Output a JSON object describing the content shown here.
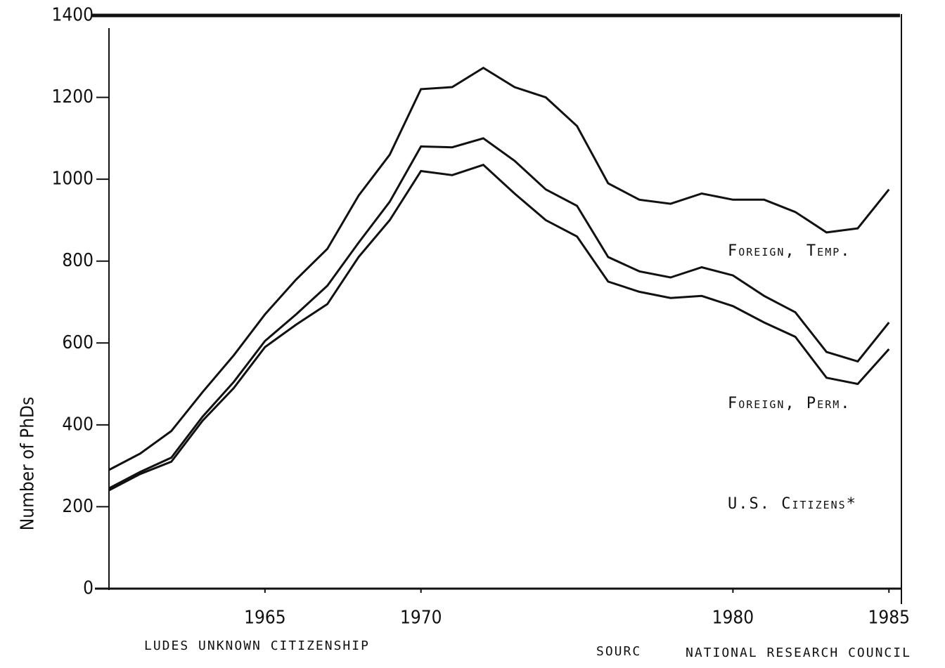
{
  "chart_data": {
    "type": "line",
    "stacked": true,
    "y_label": "Number of PhDs",
    "x": [
      1960,
      1961,
      1962,
      1963,
      1964,
      1965,
      1966,
      1967,
      1968,
      1969,
      1970,
      1971,
      1972,
      1973,
      1974,
      1975,
      1976,
      1977,
      1978,
      1979,
      1980,
      1981,
      1982,
      1983,
      1984,
      1985
    ],
    "series": [
      {
        "name": "U.S. Citizens*",
        "color": "#111111",
        "values": [
          240,
          280,
          310,
          410,
          490,
          590,
          645,
          695,
          810,
          900,
          1020,
          1010,
          1035,
          965,
          900,
          860,
          750,
          725,
          710,
          715,
          690,
          650,
          615,
          515,
          500,
          585
        ]
      },
      {
        "name": "Foreign, Perm.",
        "color": "#111111",
        "values": [
          5,
          5,
          10,
          10,
          15,
          15,
          25,
          45,
          35,
          45,
          60,
          68,
          65,
          80,
          75,
          75,
          60,
          50,
          50,
          70,
          75,
          65,
          60,
          63,
          55,
          65
        ]
      },
      {
        "name": "Foreign, Temp.",
        "color": "#111111",
        "values": [
          45,
          45,
          65,
          60,
          65,
          65,
          85,
          90,
          115,
          115,
          140,
          147,
          172,
          180,
          225,
          195,
          180,
          175,
          180,
          180,
          185,
          235,
          245,
          292,
          325,
          325
        ]
      }
    ],
    "xlim": [
      1960,
      1985.4
    ],
    "xticks": [
      1965,
      1970,
      1980,
      1985
    ],
    "ylim": [
      0,
      1400
    ],
    "yticks": [
      0,
      200,
      400,
      600,
      800,
      1000,
      1200,
      1400
    ],
    "grid": false,
    "footer": [
      "LUDES UNKNOWN CITIZENSHIP",
      "SOURC",
      "NATIONAL RESEARCH COUNCIL"
    ]
  }
}
